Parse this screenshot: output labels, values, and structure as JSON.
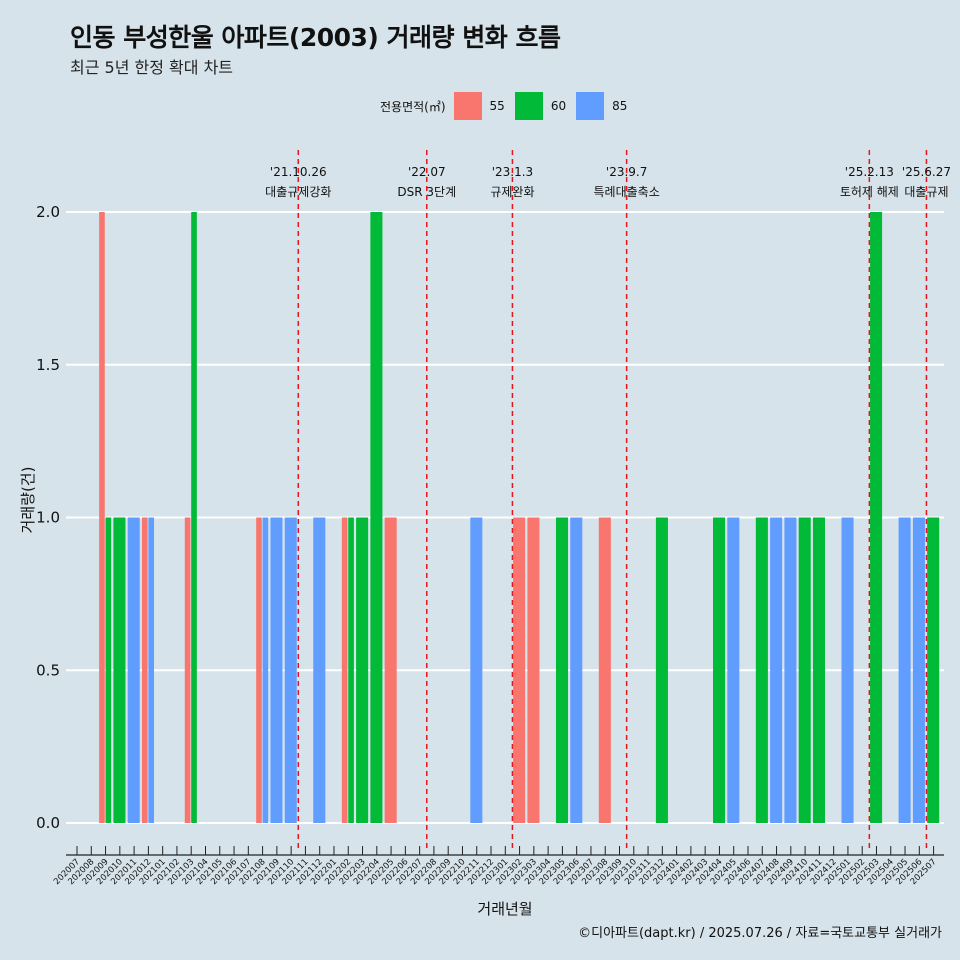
{
  "title": "인동 부성한울 아파트(2003) 거래량 변화 흐름",
  "subtitle": "최근 5년 한정 확대 차트",
  "caption": "©디아파트(dapt.kr) / 2025.07.26 / 자료=국토교통부 실거래가",
  "legend": {
    "title": "전용면적(㎡)",
    "items": [
      {
        "label": "55",
        "color": "#F8766D"
      },
      {
        "label": "60",
        "color": "#00BA38"
      },
      {
        "label": "85",
        "color": "#619CFF"
      }
    ]
  },
  "chart_data": {
    "type": "bar",
    "xlabel": "거래년월",
    "ylabel": "거래량(건)",
    "ylim": [
      0,
      2
    ],
    "yticks": [
      "0.0",
      "0.5",
      "1.0",
      "1.5",
      "2.0"
    ],
    "grid": true,
    "categories": [
      "202007",
      "202008",
      "202009",
      "202010",
      "202011",
      "202012",
      "202101",
      "202102",
      "202103",
      "202104",
      "202105",
      "202106",
      "202107",
      "202108",
      "202109",
      "202110",
      "202111",
      "202112",
      "202201",
      "202202",
      "202203",
      "202204",
      "202205",
      "202206",
      "202207",
      "202208",
      "202209",
      "202210",
      "202211",
      "202212",
      "202301",
      "202302",
      "202303",
      "202304",
      "202305",
      "202306",
      "202307",
      "202308",
      "202309",
      "202310",
      "202311",
      "202312",
      "202401",
      "202402",
      "202403",
      "202404",
      "202405",
      "202406",
      "202407",
      "202408",
      "202409",
      "202410",
      "202411",
      "202412",
      "202501",
      "202502",
      "202503",
      "202504",
      "202505",
      "202506",
      "202507"
    ],
    "series": [
      {
        "name": "55",
        "values": [
          0,
          0,
          2,
          0,
          0,
          1,
          0,
          0,
          1,
          0,
          0,
          0,
          0,
          1,
          0,
          0,
          0,
          0,
          0,
          1,
          0,
          0,
          1,
          0,
          0,
          0,
          0,
          0,
          0,
          0,
          0,
          1,
          1,
          0,
          0,
          0,
          0,
          1,
          0,
          0,
          0,
          0,
          0,
          0,
          0,
          0,
          0,
          0,
          0,
          0,
          0,
          0,
          0,
          0,
          0,
          0,
          0,
          0,
          0,
          0,
          0
        ]
      },
      {
        "name": "60",
        "values": [
          0,
          0,
          1,
          1,
          0,
          0,
          0,
          0,
          2,
          0,
          0,
          0,
          0,
          0,
          0,
          0,
          0,
          0,
          0,
          1,
          1,
          2,
          0,
          0,
          0,
          0,
          0,
          0,
          0,
          0,
          0,
          0,
          0,
          0,
          1,
          0,
          0,
          0,
          0,
          0,
          0,
          1,
          0,
          0,
          0,
          1,
          0,
          0,
          1,
          0,
          0,
          1,
          1,
          0,
          0,
          0,
          2,
          0,
          0,
          0,
          1
        ]
      },
      {
        "name": "85",
        "values": [
          0,
          0,
          0,
          0,
          1,
          1,
          0,
          0,
          0,
          0,
          0,
          0,
          0,
          1,
          1,
          1,
          0,
          1,
          0,
          0,
          0,
          0,
          0,
          0,
          0,
          0,
          0,
          0,
          1,
          0,
          0,
          0,
          0,
          0,
          0,
          1,
          0,
          0,
          0,
          0,
          0,
          0,
          0,
          0,
          0,
          0,
          1,
          0,
          0,
          1,
          1,
          0,
          0,
          0,
          1,
          0,
          0,
          0,
          1,
          1,
          0
        ]
      }
    ],
    "events": [
      {
        "after": "202110",
        "date": "'21.10.26",
        "label": "대출규제강화"
      },
      {
        "after": "202207",
        "date": "'22.07",
        "label": "DSR 3단계"
      },
      {
        "after": "202301",
        "date": "'23.1.3",
        "label": "규제완화"
      },
      {
        "after": "202309",
        "date": "'23.9.7",
        "label": "특례대출축소"
      },
      {
        "after": "202502",
        "date": "'25.2.13",
        "label": "토허제 해제"
      },
      {
        "after": "202506",
        "date": "'25.6.27",
        "label": "대출규제"
      }
    ]
  }
}
